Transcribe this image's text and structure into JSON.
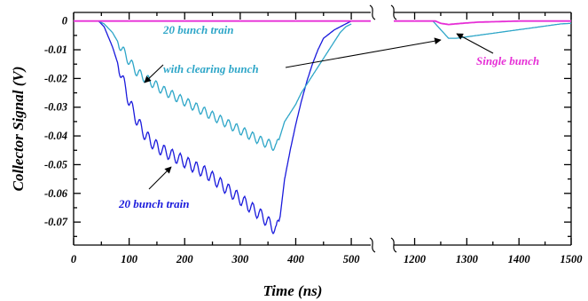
{
  "chart_data": {
    "type": "line",
    "xlabel": "Time (ns)",
    "ylabel": "Collector Signal (V)",
    "ylim": [
      -0.078,
      0.003
    ],
    "y_ticks": [
      0,
      -0.01,
      -0.02,
      -0.03,
      -0.04,
      -0.05,
      -0.06,
      -0.07
    ],
    "y_tick_labels": [
      "0",
      "-0.01",
      "-0.02",
      "-0.03",
      "-0.04",
      "-0.05",
      "-0.06",
      "-0.07"
    ],
    "x_segments": [
      {
        "xlim": [
          0,
          535
        ],
        "ticks": [
          0,
          100,
          200,
          300,
          400,
          500
        ],
        "tick_labels": [
          "0",
          "100",
          "200",
          "300",
          "400",
          "500"
        ]
      },
      {
        "xlim": [
          1160,
          1500
        ],
        "ticks": [
          1200,
          1300,
          1400,
          1500
        ],
        "tick_labels": [
          "1200",
          "1300",
          "1400",
          "1500"
        ]
      }
    ],
    "axis_break": true,
    "grid": false,
    "series": [
      {
        "name": "20 bunch train",
        "color": "#1a1adc",
        "segment": 0,
        "x": [
          0,
          35,
          45,
          55,
          70,
          85,
          100,
          115,
          130,
          145,
          160,
          180,
          200,
          220,
          240,
          260,
          280,
          300,
          320,
          340,
          355,
          365,
          372,
          380,
          390,
          400,
          410,
          420,
          430,
          440,
          450,
          470,
          490,
          500
        ],
        "y": [
          0,
          0,
          0,
          -0.002,
          -0.009,
          -0.018,
          -0.028,
          -0.035,
          -0.04,
          -0.043,
          -0.045,
          -0.047,
          -0.049,
          -0.051,
          -0.053,
          -0.056,
          -0.059,
          -0.062,
          -0.065,
          -0.068,
          -0.071,
          -0.073,
          -0.068,
          -0.055,
          -0.045,
          -0.036,
          -0.028,
          -0.021,
          -0.015,
          -0.01,
          -0.006,
          -0.003,
          -0.001,
          0
        ]
      },
      {
        "name": "20 bunch train with clearing bunch",
        "color": "#2ea6c8",
        "segment": 0,
        "x": [
          0,
          35,
          45,
          55,
          70,
          85,
          100,
          115,
          130,
          145,
          160,
          180,
          200,
          220,
          240,
          260,
          280,
          300,
          320,
          340,
          355,
          365,
          372,
          380,
          390,
          400,
          410,
          420,
          430,
          440,
          450,
          460,
          470,
          480,
          490,
          500
        ],
        "y": [
          0,
          0,
          0,
          -0.001,
          -0.004,
          -0.009,
          -0.014,
          -0.018,
          -0.02,
          -0.022,
          -0.024,
          -0.026,
          -0.028,
          -0.03,
          -0.032,
          -0.034,
          -0.036,
          -0.038,
          -0.04,
          -0.042,
          -0.043,
          -0.044,
          -0.04,
          -0.035,
          -0.032,
          -0.029,
          -0.025,
          -0.022,
          -0.019,
          -0.016,
          -0.013,
          -0.01,
          -0.007,
          -0.004,
          -0.002,
          -0.001
        ]
      },
      {
        "name": "20 bunch train with clearing bunch",
        "color": "#2ea6c8",
        "segment": 1,
        "x": [
          1160,
          1235,
          1245,
          1255,
          1265,
          1280,
          1300,
          1320,
          1340,
          1360,
          1380,
          1400,
          1420,
          1440,
          1460,
          1480,
          1500
        ],
        "y": [
          0,
          0,
          -0.002,
          -0.004,
          -0.006,
          -0.006,
          -0.0055,
          -0.005,
          -0.0045,
          -0.004,
          -0.0035,
          -0.003,
          -0.0025,
          -0.002,
          -0.0015,
          -0.001,
          -0.0008
        ]
      },
      {
        "name": "Single bunch",
        "color": "#e62fd6",
        "segment": 0,
        "x": [
          0,
          535
        ],
        "y": [
          0,
          0
        ]
      },
      {
        "name": "Single bunch",
        "color": "#e62fd6",
        "segment": 1,
        "x": [
          1160,
          1240,
          1250,
          1265,
          1290,
          1320,
          1360,
          1400,
          1450,
          1500
        ],
        "y": [
          0,
          0,
          -0.0008,
          -0.0012,
          -0.0008,
          -0.0004,
          -0.0002,
          0,
          0,
          0
        ]
      }
    ],
    "annotations": [
      {
        "lines": [
          "20 bunch train",
          "with clearing bunch"
        ],
        "color": "#2ea6c8"
      },
      {
        "lines": [
          "20 bunch train"
        ],
        "color": "#1a1adc"
      },
      {
        "lines": [
          "Single bunch"
        ],
        "color": "#e62fd6"
      }
    ]
  }
}
